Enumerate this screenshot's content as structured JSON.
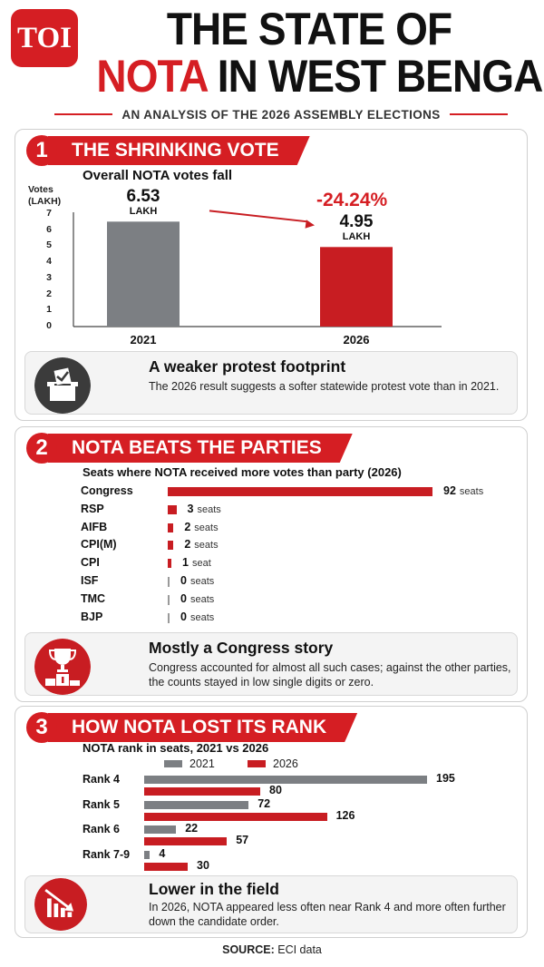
{
  "logo": "TOI",
  "title_line1": "THE STATE OF",
  "title_line2_red": "NOTA",
  "title_line2_rest": "IN WEST BENGAL",
  "subtitle": "AN ANALYSIS OF THE 2026 ASSEMBLY ELECTIONS",
  "colors": {
    "accent": "#d51e23",
    "grey_bar": "#7c7f83",
    "dark_icon": "#3b3b3b"
  },
  "sections": [
    {
      "number": "1",
      "title": "THE SHRINKING VOTE",
      "chart_subtitle": "Overall NOTA votes fall",
      "ylabel_line1": "Votes",
      "ylabel_line2": "(LAKH)",
      "change_label": "-24.24%",
      "note": {
        "icon": "ballot-box-icon",
        "title": "A weaker protest footprint",
        "text": "The 2026 result suggests a softer statewide protest vote than in 2021."
      }
    },
    {
      "number": "2",
      "title": "NOTA BEATS THE PARTIES",
      "chart_subtitle": "Seats where NOTA received more votes than party (2026)",
      "note": {
        "icon": "trophy-podium-icon",
        "title": "Mostly a Congress story",
        "text": "Congress accounted for almost all such cases; against the other parties, the counts stayed in low single digits or zero."
      }
    },
    {
      "number": "3",
      "title": "HOW NOTA LOST ITS RANK",
      "chart_subtitle": "NOTA rank in seats, 2021 vs 2026",
      "note": {
        "icon": "falling-chart-icon",
        "title": "Lower in the field",
        "text": "In 2026, NOTA appeared less often near Rank 4 and more often further down the candidate order."
      }
    }
  ],
  "source_label": "SOURCE:",
  "source_text": "ECI data",
  "chart_data": [
    {
      "type": "bar",
      "title": "Overall NOTA votes fall",
      "ylabel": "Votes (LAKH)",
      "categories": [
        "2021",
        "2026"
      ],
      "values": [
        6.53,
        4.95
      ],
      "value_labels": [
        "6.53",
        "4.95"
      ],
      "unit_label": "LAKH",
      "yticks": [
        "0",
        "1",
        "2",
        "3",
        "4",
        "5",
        "6",
        "7"
      ],
      "ylim": [
        0,
        7
      ],
      "colors": [
        "#7c7f83",
        "#c81d22"
      ],
      "annotation": "-24.24%"
    },
    {
      "type": "bar",
      "orientation": "horizontal",
      "title": "Seats where NOTA received more votes than party (2026)",
      "categories": [
        "Congress",
        "RSP",
        "AIFB",
        "CPI(M)",
        "CPI",
        "ISF",
        "TMC",
        "BJP"
      ],
      "values": [
        92,
        3,
        2,
        2,
        1,
        0,
        0,
        0
      ],
      "value_labels": [
        "92",
        "3",
        "2",
        "2",
        "1",
        "0",
        "0",
        "0"
      ],
      "unit_labels": [
        "seats",
        "seats",
        "seats",
        "seats",
        "seat",
        "seats",
        "seats",
        "seats"
      ],
      "xlim": [
        0,
        92
      ]
    },
    {
      "type": "bar",
      "orientation": "horizontal",
      "title": "NOTA rank in seats, 2021 vs 2026",
      "categories": [
        "Rank 4",
        "Rank 5",
        "Rank 6",
        "Rank 7-9"
      ],
      "series": [
        {
          "name": "2021",
          "values": [
            195,
            72,
            22,
            4
          ],
          "labels": [
            "195",
            "72",
            "22",
            "4"
          ],
          "color": "#7c7f83"
        },
        {
          "name": "2026",
          "values": [
            80,
            126,
            57,
            30
          ],
          "labels": [
            "80",
            "126",
            "57",
            "30"
          ],
          "color": "#c81d22"
        }
      ],
      "xlim": [
        0,
        195
      ],
      "legend": "top"
    }
  ]
}
